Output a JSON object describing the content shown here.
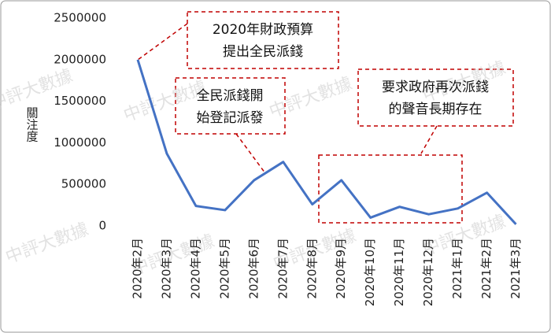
{
  "chart_data": {
    "type": "line",
    "y_label": "關注度",
    "categories": [
      "2020年2月",
      "2020年3月",
      "2020年4月",
      "2020年5月",
      "2020年6月",
      "2020年7月",
      "2020年8月",
      "2020年9月",
      "2020年10月",
      "2020年11月",
      "2020年12月",
      "2021年1月",
      "2021年2月",
      "2021年3月"
    ],
    "series": [
      {
        "color": "#4472c4",
        "values": [
          2000000,
          870000,
          240000,
          190000,
          550000,
          770000,
          260000,
          550000,
          100000,
          230000,
          140000,
          210000,
          400000,
          20000
        ]
      }
    ],
    "ylim": [
      0,
      2500000
    ],
    "yticks": [
      0,
      500000,
      1000000,
      1500000,
      2000000,
      2500000
    ],
    "grid": false,
    "annotations": [
      {
        "lines": [
          "2020年財政預算",
          "提出全民派錢"
        ]
      },
      {
        "lines": [
          "全民派錢開",
          "始登記派發"
        ]
      },
      {
        "lines": [
          "要求政府再次派錢",
          "的聲音長期存在"
        ]
      }
    ],
    "watermark": "中評大數據"
  }
}
